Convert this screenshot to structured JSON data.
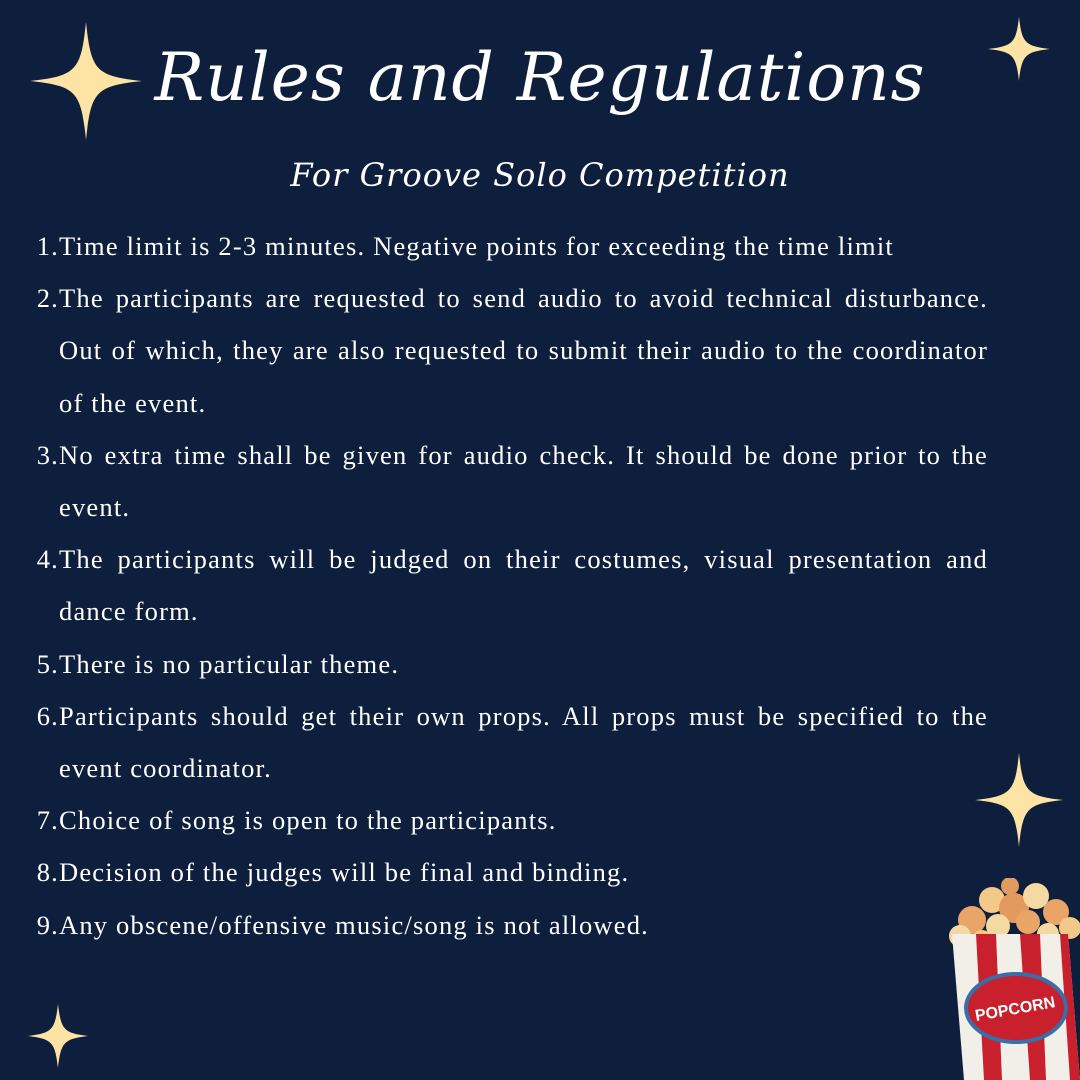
{
  "header": {
    "title": "Rules and Regulations",
    "subtitle": "For Groove Solo Competition"
  },
  "rules": [
    {
      "num": "1.",
      "text": "Time limit is 2-3 minutes. Negative points for exceeding the time limit"
    },
    {
      "num": "2.",
      "text": " The participants are requested to send audio to avoid technical disturbance. Out of which, they are also requested to submit their audio to the coordinator of the event."
    },
    {
      "num": "3.",
      "text": "No extra time shall be given for audio check. It should be done prior to the event."
    },
    {
      "num": "4.",
      "text": "The participants will be judged on their costumes, visual presentation and dance form."
    },
    {
      "num": "5.",
      "text": "There is no particular theme."
    },
    {
      "num": "6.",
      "text": "Participants should get their own props. All props must be specified to the event coordinator."
    },
    {
      "num": "7.",
      "text": "Choice of song is open to the participants."
    },
    {
      "num": "8.",
      "text": "Decision of the judges will be final and binding."
    },
    {
      "num": "9.",
      "text": "Any obscene/offensive music/song is not allowed."
    }
  ],
  "decor": {
    "popcorn_label": "POPCORN",
    "star_icon": "sparkle-star-icon"
  },
  "colors": {
    "background": "#0e1f3d",
    "text": "#ffffff",
    "star": "#fde4a4",
    "popcorn_red": "#c8202c"
  }
}
